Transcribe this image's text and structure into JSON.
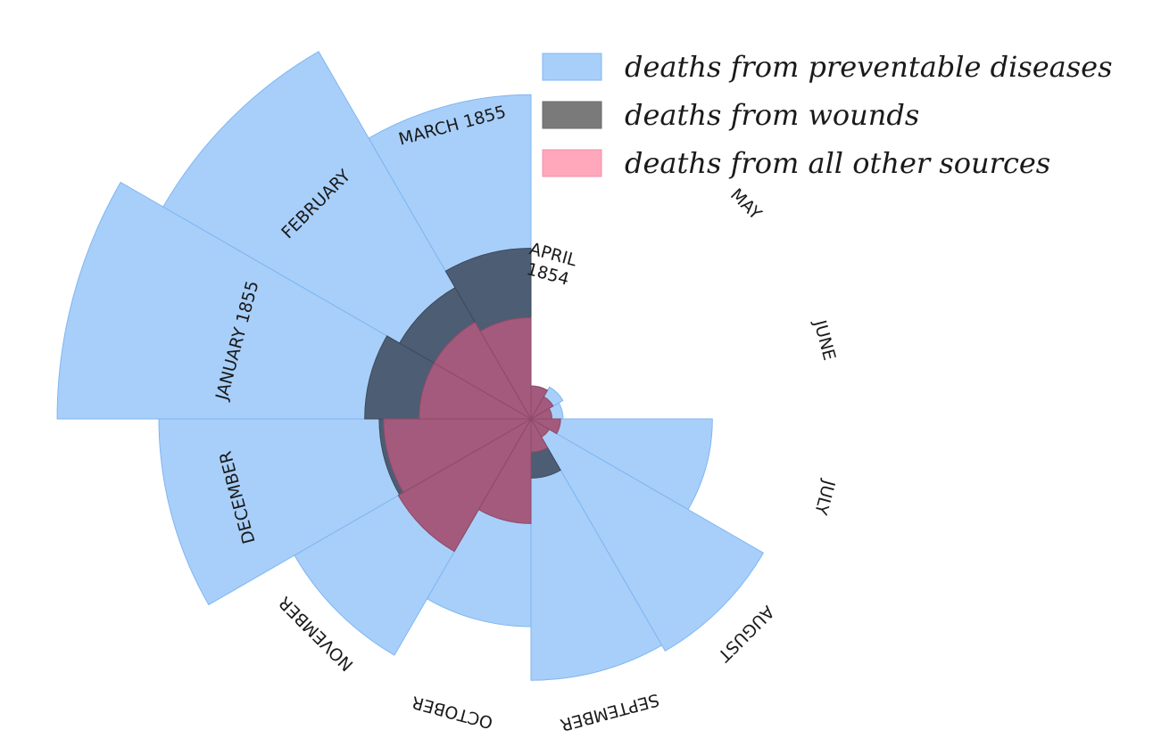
{
  "chart_data": {
    "type": "polar-area",
    "title": "",
    "colors": {
      "disease": "#a8cff9",
      "disease_edge": "#7fb6f2",
      "wounds": "#4d5d73",
      "other": "#a35a7c"
    },
    "legend": {
      "position": "top-right",
      "entries": [
        {
          "key": "disease",
          "label": "deaths from preventable diseases",
          "swatch": "#a8cff9"
        },
        {
          "key": "wounds",
          "label": "deaths from wounds",
          "swatch": "#7a7a7a"
        },
        {
          "key": "other",
          "label": "deaths from all other sources",
          "swatch": "#ffa7bb"
        }
      ]
    },
    "categories": [
      "APRIL 1854",
      "MAY",
      "JUNE",
      "JULY",
      "AUGUST",
      "SEPTEMBER",
      "OCTOBER",
      "NOVEMBER",
      "DECEMBER",
      "JANUARY 1855",
      "FEBRUARY",
      "MARCH 1855"
    ],
    "series": [
      {
        "name": "deaths from preventable diseases",
        "key": "disease",
        "values": [
          1.4,
          6.2,
          4.7,
          150,
          328,
          312,
          197,
          340,
          631,
          1023,
          822,
          480
        ]
      },
      {
        "name": "deaths from wounds",
        "key": "wounds",
        "values": [
          0,
          0,
          0,
          0,
          1,
          16,
          45,
          86,
          105,
          126,
          105,
          133
        ]
      },
      {
        "name": "deaths from all other sources",
        "key": "other",
        "values": [
          5,
          3,
          2,
          4,
          2,
          5,
          50,
          107,
          99,
          57,
          57,
          47
        ]
      }
    ],
    "order_note": "clockwise from 12 o'clock, starting APRIL 1854"
  }
}
